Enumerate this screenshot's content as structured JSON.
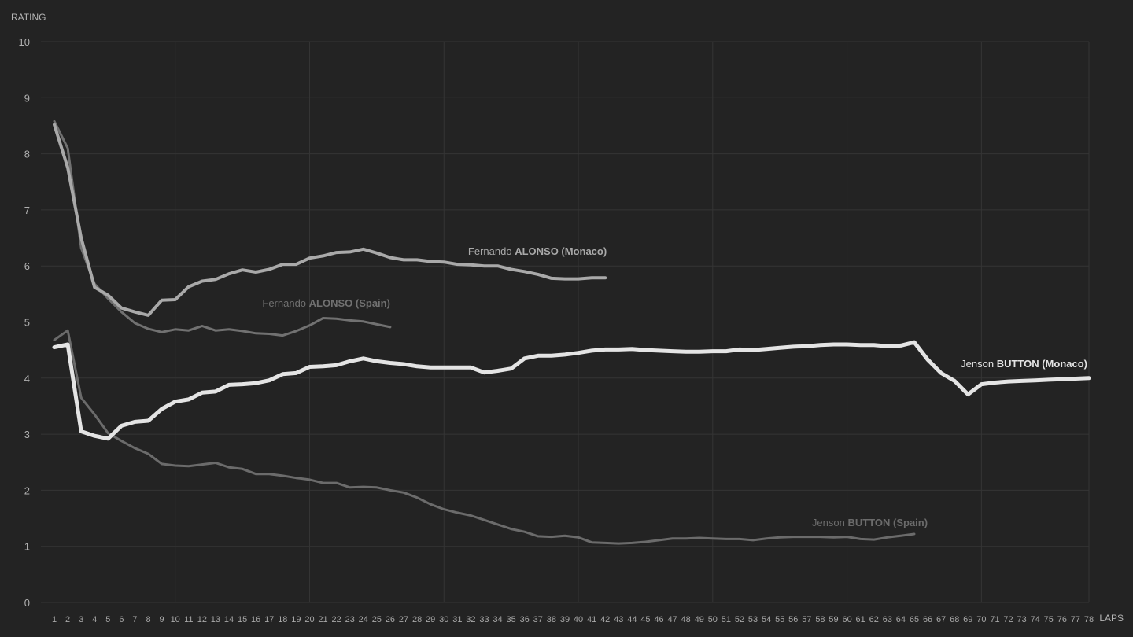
{
  "chart_data": {
    "type": "line",
    "ylabel": "RATING",
    "xlabel": "LAPS",
    "ylim": [
      0,
      10
    ],
    "xlim": [
      1,
      78
    ],
    "yticks": [
      0,
      1,
      2,
      3,
      4,
      5,
      6,
      7,
      8,
      9,
      10
    ],
    "grid": true,
    "series": [
      {
        "name": "Jenson BUTTON (Spain)",
        "first_name": "Jenson",
        "last_name": "BUTTON",
        "race": "(Spain)",
        "color": "#6b6b6b",
        "width": 3,
        "values": [
          4.68,
          4.85,
          3.65,
          3.35,
          3.02,
          2.88,
          2.75,
          2.65,
          2.47,
          2.44,
          2.43,
          2.46,
          2.49,
          2.41,
          2.38,
          2.29,
          2.29,
          2.26,
          2.22,
          2.19,
          2.13,
          2.13,
          2.05,
          2.06,
          2.05,
          2.0,
          1.96,
          1.87,
          1.75,
          1.66,
          1.6,
          1.55,
          1.47,
          1.39,
          1.31,
          1.26,
          1.18,
          1.17,
          1.19,
          1.16,
          1.07,
          1.06,
          1.05,
          1.06,
          1.08,
          1.11,
          1.14,
          1.14,
          1.15,
          1.14,
          1.13,
          1.13,
          1.11,
          1.14,
          1.16,
          1.17,
          1.17,
          1.17,
          1.16,
          1.17,
          1.13,
          1.12,
          1.16,
          1.19,
          1.22
        ]
      },
      {
        "name": "Fernando ALONSO (Spain)",
        "first_name": "Fernando",
        "last_name": "ALONSO",
        "race": "(Spain)",
        "color": "#717171",
        "width": 3,
        "values": [
          8.58,
          8.1,
          6.32,
          5.68,
          5.42,
          5.18,
          4.98,
          4.88,
          4.82,
          4.87,
          4.85,
          4.93,
          4.85,
          4.87,
          4.84,
          4.8,
          4.79,
          4.76,
          4.84,
          4.94,
          5.07,
          5.06,
          5.03,
          5.01,
          4.96,
          4.91
        ]
      },
      {
        "name": "Fernando ALONSO (Monaco)",
        "first_name": "Fernando",
        "last_name": "ALONSO",
        "race": "(Monaco)",
        "color": "#a9a9a9",
        "width": 4,
        "values": [
          8.52,
          7.75,
          6.5,
          5.62,
          5.48,
          5.25,
          5.18,
          5.12,
          5.39,
          5.4,
          5.63,
          5.73,
          5.76,
          5.86,
          5.93,
          5.89,
          5.94,
          6.03,
          6.03,
          6.14,
          6.18,
          6.24,
          6.25,
          6.3,
          6.23,
          6.15,
          6.11,
          6.11,
          6.08,
          6.07,
          6.03,
          6.02,
          6.0,
          6.0,
          5.94,
          5.9,
          5.85,
          5.78,
          5.77,
          5.77,
          5.79,
          5.79
        ]
      },
      {
        "name": "Jenson BUTTON (Monaco)",
        "first_name": "Jenson",
        "last_name": "BUTTON",
        "race": "(Monaco)",
        "color": "#e4e4e4",
        "width": 5,
        "values": [
          4.55,
          4.6,
          3.05,
          2.97,
          2.92,
          3.15,
          3.22,
          3.24,
          3.45,
          3.58,
          3.62,
          3.74,
          3.76,
          3.88,
          3.89,
          3.91,
          3.96,
          4.07,
          4.09,
          4.2,
          4.21,
          4.23,
          4.3,
          4.35,
          4.3,
          4.27,
          4.25,
          4.21,
          4.19,
          4.19,
          4.19,
          4.19,
          4.1,
          4.13,
          4.17,
          4.35,
          4.4,
          4.4,
          4.42,
          4.45,
          4.49,
          4.51,
          4.51,
          4.52,
          4.5,
          4.49,
          4.48,
          4.47,
          4.47,
          4.48,
          4.48,
          4.51,
          4.5,
          4.52,
          4.54,
          4.56,
          4.57,
          4.59,
          4.6,
          4.6,
          4.59,
          4.59,
          4.57,
          4.58,
          4.64,
          4.33,
          4.09,
          3.95,
          3.71,
          3.89,
          3.92,
          3.94,
          3.95,
          3.96,
          3.97,
          3.98,
          3.99,
          4.0
        ]
      }
    ]
  }
}
